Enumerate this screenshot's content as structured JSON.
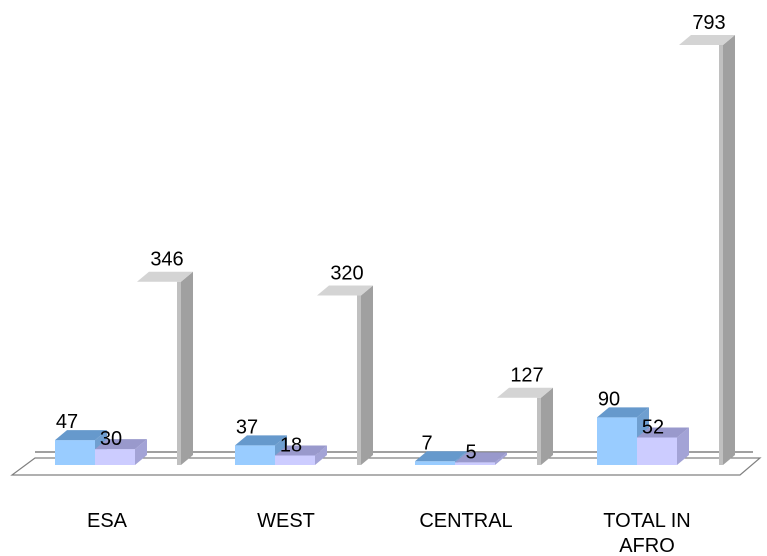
{
  "chart_data": {
    "type": "bar",
    "title": "",
    "xlabel": "",
    "ylabel": "",
    "categories": [
      {
        "line1": "ESA",
        "line2": ""
      },
      {
        "line1": "WEST",
        "line2": ""
      },
      {
        "line1": "CENTRAL",
        "line2": ""
      },
      {
        "line1": "TOTAL IN",
        "line2": "AFRO"
      }
    ],
    "series": [
      {
        "values": [
          47,
          37,
          7,
          90
        ],
        "front": "#99ccff",
        "top": "#6699cc",
        "side": "#6f9fd0"
      },
      {
        "values": [
          30,
          18,
          5,
          52
        ],
        "front": "#ccccff",
        "top": "#9999cc",
        "side": "#a3a3d6"
      },
      {
        "values": [
          346,
          320,
          127,
          793
        ],
        "front": "#c0c0c0",
        "top": "#d4d4d4",
        "side": "#a0a0a0"
      }
    ],
    "data_labels": [
      "47",
      "30",
      "346",
      "37",
      "18",
      "320",
      "7",
      "5",
      "127",
      "90",
      "52",
      "793"
    ],
    "ylim": [
      0,
      793
    ],
    "grid": false,
    "legend": "none"
  }
}
